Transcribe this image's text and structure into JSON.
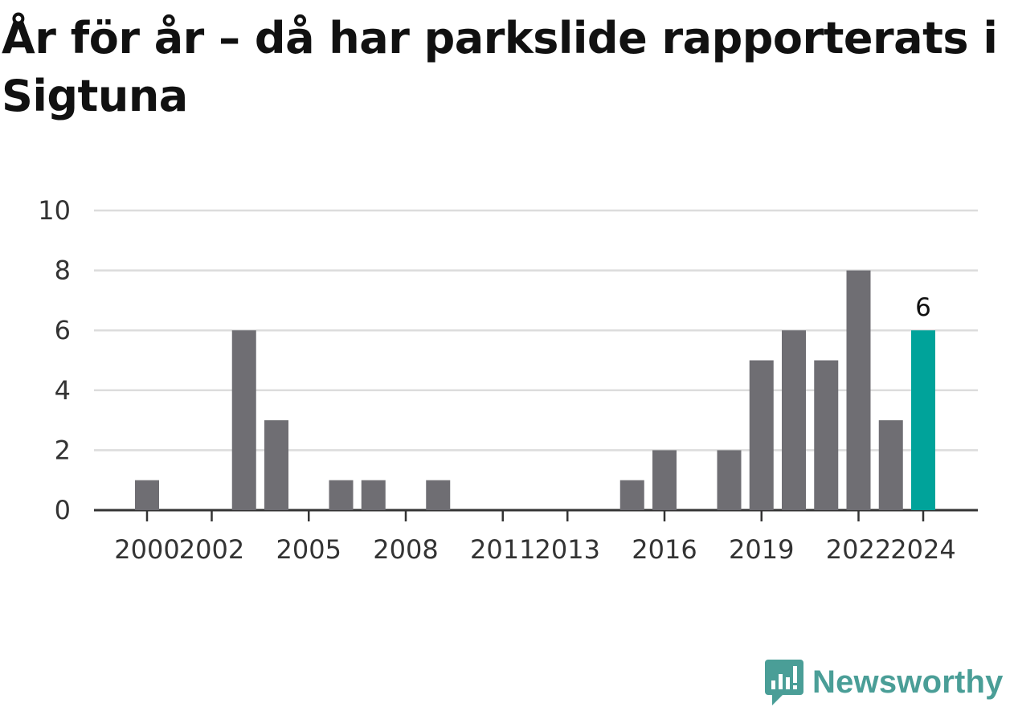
{
  "title": "År för år – då har parkslide rapporterats i Sigtuna",
  "brand": {
    "name": "Newsworthy",
    "color": "#4a9e97",
    "icon": "bar-chart-speech-bubble-icon"
  },
  "chart_data": {
    "type": "bar",
    "categories": [
      "2000",
      "2001",
      "2002",
      "2003",
      "2004",
      "2005",
      "2006",
      "2007",
      "2008",
      "2009",
      "2010",
      "2011",
      "2012",
      "2013",
      "2014",
      "2015",
      "2016",
      "2017",
      "2018",
      "2019",
      "2020",
      "2021",
      "2022",
      "2023",
      "2024"
    ],
    "values": [
      1,
      0,
      0,
      6,
      3,
      0,
      1,
      1,
      0,
      1,
      0,
      0,
      0,
      0,
      0,
      1,
      2,
      0,
      2,
      5,
      6,
      5,
      8,
      3,
      6
    ],
    "x_tick_labels": [
      "2000",
      "2002",
      "2005",
      "2008",
      "2011",
      "2013",
      "2016",
      "2019",
      "2022",
      "2024"
    ],
    "y_ticks": [
      0,
      2,
      4,
      6,
      8,
      10
    ],
    "ylim": [
      0,
      10
    ],
    "highlight": {
      "category": "2024",
      "label": "6",
      "color": "#00a39a"
    },
    "bar_color": "#6f6e73",
    "grid": true,
    "xlabel": "",
    "ylabel": ""
  }
}
